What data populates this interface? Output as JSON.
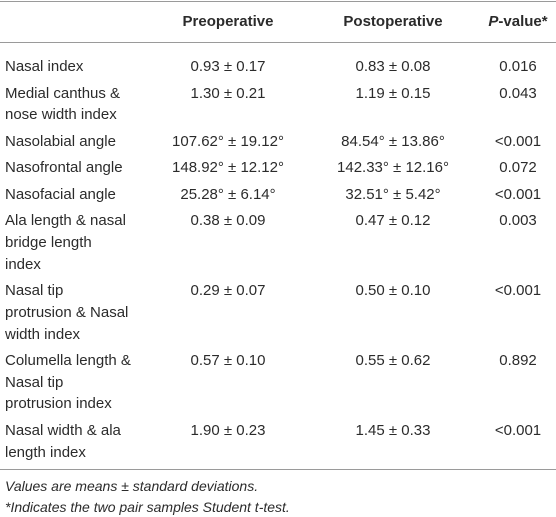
{
  "table": {
    "header": {
      "label": "",
      "pre": "Preoperative",
      "post": "Postoperative",
      "p": {
        "italic": "P",
        "rest": "-value*"
      }
    },
    "rows": [
      {
        "label": [
          "Nasal index"
        ],
        "pre": "0.93 ± 0.17",
        "post": "0.83 ± 0.08",
        "p": "0.016"
      },
      {
        "label": [
          "Medial canthus &",
          "nose width index"
        ],
        "pre": "1.30 ± 0.21",
        "post": "1.19 ± 0.15",
        "p": "0.043"
      },
      {
        "label": [
          "Nasolabial angle"
        ],
        "pre": "107.62° ± 19.12°",
        "post": "84.54° ± 13.86°",
        "p": "<0.001"
      },
      {
        "label": [
          "Nasofrontal angle"
        ],
        "pre": "148.92° ± 12.12°",
        "post": "142.33° ± 12.16°",
        "p": "0.072"
      },
      {
        "label": [
          "Nasofacial angle"
        ],
        "pre": "25.28° ± 6.14°",
        "post": "32.51° ± 5.42°",
        "p": "<0.001"
      },
      {
        "label": [
          "Ala length & nasal",
          "bridge length",
          "index"
        ],
        "pre": "0.38 ± 0.09",
        "post": "0.47 ± 0.12",
        "p": "0.003"
      },
      {
        "label": [
          "Nasal tip",
          "protrusion & Nasal",
          "width index"
        ],
        "pre": "0.29 ± 0.07",
        "post": "0.50 ± 0.10",
        "p": "<0.001"
      },
      {
        "label": [
          "Columella length &",
          "Nasal tip",
          "protrusion index"
        ],
        "pre": "0.57 ± 0.10",
        "post": "0.55 ± 0.62",
        "p": "0.892"
      },
      {
        "label": [
          "Nasal width & ala",
          "length index"
        ],
        "pre": "1.90 ± 0.23",
        "post": "1.45 ± 0.33",
        "p": "<0.001"
      }
    ],
    "footnotes": [
      "Values are means ± standard deviations.",
      "*Indicates the two pair samples Student t-test."
    ]
  }
}
